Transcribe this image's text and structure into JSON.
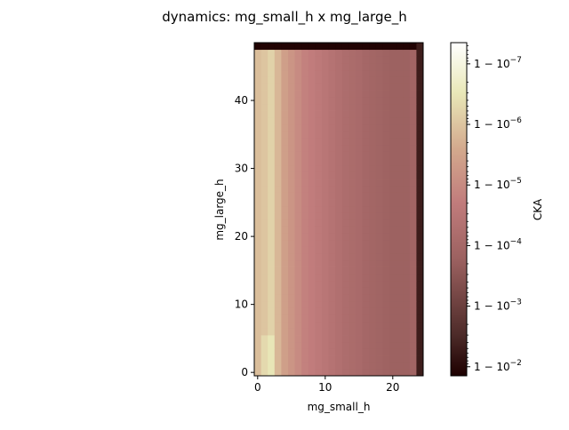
{
  "chart_data": {
    "type": "heatmap",
    "title": "dynamics: mg_small_h x mg_large_h",
    "xlabel": "mg_small_h",
    "ylabel": "mg_large_h",
    "x_range": [
      0,
      24
    ],
    "y_range": [
      0,
      48
    ],
    "xticks": [
      "0",
      "10",
      "20"
    ],
    "xtick_values": [
      0,
      10,
      20
    ],
    "yticks": [
      "0",
      "10",
      "20",
      "30",
      "40"
    ],
    "ytick_values": [
      0,
      10,
      20,
      30,
      40
    ],
    "colorbar": {
      "label": "CKA",
      "scale": "log of (1 - CKA)",
      "tick_labels": [
        "1 − 10",
        "1 − 10",
        "1 − 10",
        "1 − 10",
        "1 − 10",
        "1 − 10"
      ],
      "tick_exponents": [
        "−7",
        "−6",
        "−5",
        "−4",
        "−3",
        "−2"
      ],
      "tick_log_values": [
        -7,
        -6,
        -5,
        -4,
        -3,
        -2
      ],
      "log_range": [
        -7.35,
        -1.85
      ]
    },
    "colors": {
      "dark": "#1d0000",
      "low_end": "#4c2a28",
      "mid_pink": "#c17c7c",
      "tan": "#d6b89a",
      "cream": "#e9e8b8",
      "white": "#ffffff"
    },
    "column_log_values": [
      -5.9,
      -6.0,
      -6.2,
      -5.8,
      -5.4,
      -5.2,
      -5.0,
      -4.8,
      -4.7,
      -4.6,
      -4.5,
      -4.4,
      -4.3,
      -4.2,
      -4.15,
      -4.1,
      -4.0,
      -3.95,
      -3.9,
      -3.85,
      -3.8,
      -3.8,
      -3.8,
      -3.9,
      -2.3
    ],
    "top_row_log_value": -1.9,
    "notes_row_variation": "columns 1-2 slightly lighter near the bottom rows"
  }
}
